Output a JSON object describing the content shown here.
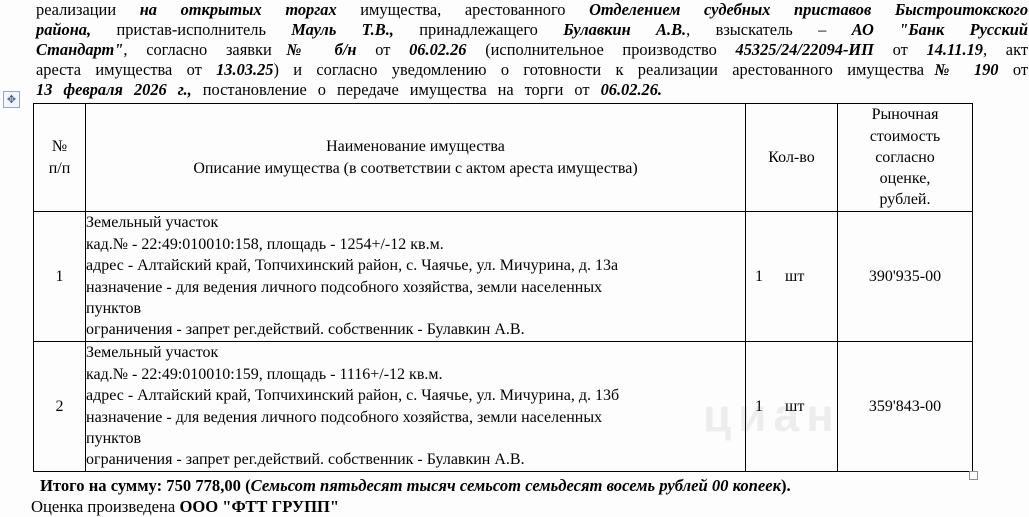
{
  "intro": {
    "lines": [
      [
        {
          "t": "реализации ",
          "b": 0,
          "i": 0
        },
        {
          "t": "на открытых торгах",
          "b": 1,
          "i": 1
        },
        {
          "t": " имущества, арестованного ",
          "b": 0,
          "i": 0
        },
        {
          "t": "Отделением судебных приставов Быстроитокского",
          "b": 1,
          "i": 1
        }
      ],
      [
        {
          "t": "района,",
          "b": 1,
          "i": 1
        },
        {
          "t": " пристав-исполнитель ",
          "b": 0,
          "i": 0
        },
        {
          "t": "Мауль Т.В.,",
          "b": 1,
          "i": 1
        },
        {
          "t": " принадлежащего ",
          "b": 0,
          "i": 0
        },
        {
          "t": "Булавкин А.В.",
          "b": 1,
          "i": 1
        },
        {
          "t": ", взыскатель – ",
          "b": 0,
          "i": 0
        },
        {
          "t": "АО \"Банк Русский",
          "b": 1,
          "i": 1
        }
      ],
      [
        {
          "t": "Стандарт\"",
          "b": 1,
          "i": 1
        },
        {
          "t": ", согласно заявки",
          "b": 0,
          "i": 0
        },
        {
          "t": "№ б/н",
          "b": 1,
          "i": 1
        },
        {
          "t": " от ",
          "b": 0,
          "i": 0
        },
        {
          "t": "06.02.26",
          "b": 1,
          "i": 1
        },
        {
          "t": " (исполнительное производство ",
          "b": 0,
          "i": 0
        },
        {
          "t": "45325/24/22094-ИП",
          "b": 1,
          "i": 1
        },
        {
          "t": " от ",
          "b": 0,
          "i": 0
        },
        {
          "t": "14.11.19",
          "b": 1,
          "i": 1
        },
        {
          "t": ", акт",
          "b": 0,
          "i": 0
        }
      ],
      [
        {
          "t": "ареста имущества от ",
          "b": 0,
          "i": 0
        },
        {
          "t": "13.03.25",
          "b": 1,
          "i": 1
        },
        {
          "t": ") и согласно уведомлению о готовности к реализации арестованного имущества",
          "b": 0,
          "i": 0
        },
        {
          "t": "№ 190",
          "b": 1,
          "i": 1
        },
        {
          "t": " от",
          "b": 0,
          "i": 0
        }
      ],
      [
        {
          "t": "13 февраля 2026 г.,",
          "b": 1,
          "i": 1
        },
        {
          "t": " постановление о передаче имущества на торги от ",
          "b": 0,
          "i": 0
        },
        {
          "t": "06.02.26.",
          "b": 1,
          "i": 1
        }
      ]
    ]
  },
  "icons": {
    "move_handle_glyph": "✥"
  },
  "table": {
    "headers": {
      "number_lines": [
        "№",
        "п/п"
      ],
      "name_lines": [
        "Наименование имущества",
        "Описание имущества (в соответствии с актом ареста имущества)"
      ],
      "qty": "Кол-во",
      "price_lines": [
        "Рыночная",
        "стоимость",
        "согласно",
        "оценке,",
        "рублей."
      ]
    },
    "rows": [
      {
        "num": "1",
        "desc_lines": [
          "Земельный участок",
          "кад.№ - 22:49:010010:158, площадь - 1254+/-12 кв.м.",
          "адрес - Алтайский край, Топчихинский район, с. Чаячье, ул. Мичурина, д. 13а",
          "назначение - для ведения личного подсобного хозяйства, земли населенных",
          "пунктов",
          "ограничения - запрет рег.действий. собственник - Булавкин А.В."
        ],
        "qty": "1",
        "unit": "шт",
        "price": "390'935-00"
      },
      {
        "num": "2",
        "desc_lines": [
          "Земельный участок",
          "кад.№ - 22:49:010010:159, площадь - 1116+/-12 кв.м.",
          "адрес - Алтайский край, Топчихинский район, с. Чаячье, ул. Мичурина, д. 13б",
          "назначение - для ведения личного подсобного хозяйства, земли населенных",
          "пунктов",
          "ограничения - запрет рег.действий. собственник - Булавкин А.В."
        ],
        "qty": "1",
        "unit": "шт",
        "price": "359'843-00"
      }
    ]
  },
  "watermark": {
    "text": "циан"
  },
  "footer": {
    "total_segments": [
      {
        "t": "Итого на сумму: 750 778,00 (",
        "b": 1,
        "i": 0
      },
      {
        "t": "Семьсот пятьдесят тысяч семьсот семьдесят восемь рублей 00 копеек",
        "b": 1,
        "i": 1
      },
      {
        "t": ").",
        "b": 1,
        "i": 0
      }
    ],
    "appraisal_segments": [
      {
        "t": "Оценка произведена ",
        "b": 0,
        "i": 0
      },
      {
        "t": "ООО \"ФТТ ГРУПП\"",
        "b": 1,
        "i": 0
      }
    ]
  }
}
